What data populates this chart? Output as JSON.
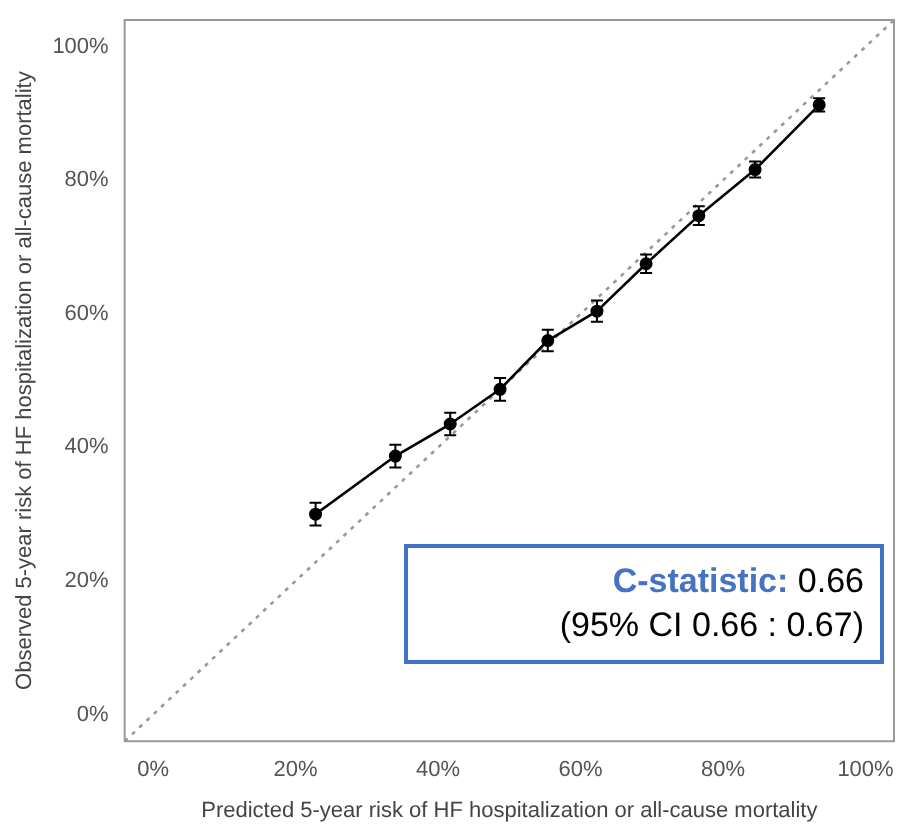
{
  "chart_data": {
    "type": "line",
    "xlabel": "Predicted 5-year risk of HF hospitalization or all-cause mortality",
    "ylabel": "Observed 5-year risk of HF hospitalization or all-cause mortality",
    "xlim": [
      -4,
      104
    ],
    "ylim": [
      -4,
      104
    ],
    "xticks": [
      {
        "value": 0,
        "label": "0%"
      },
      {
        "value": 20,
        "label": "20%"
      },
      {
        "value": 40,
        "label": "40%"
      },
      {
        "value": 60,
        "label": "60%"
      },
      {
        "value": 80,
        "label": "80%"
      },
      {
        "value": 100,
        "label": "100%"
      }
    ],
    "yticks": [
      {
        "value": 0,
        "label": "0%"
      },
      {
        "value": 20,
        "label": "20%"
      },
      {
        "value": 40,
        "label": "40%"
      },
      {
        "value": 60,
        "label": "60%"
      },
      {
        "value": 80,
        "label": "80%"
      },
      {
        "value": 100,
        "label": "100%"
      }
    ],
    "grid": false,
    "legend": false,
    "series": [
      {
        "color": "#000000",
        "marker": "circle",
        "line_style": "solid",
        "x": [
          22.8,
          34.0,
          41.7,
          48.7,
          55.4,
          62.3,
          69.2,
          76.6,
          84.5,
          93.5
        ],
        "values": [
          30.0,
          38.7,
          43.5,
          48.7,
          56.0,
          60.4,
          67.5,
          74.7,
          81.6,
          91.3
        ],
        "errors": [
          1.7,
          1.7,
          1.7,
          1.7,
          1.6,
          1.6,
          1.4,
          1.4,
          1.2,
          1.0
        ]
      },
      {
        "color": "#999999",
        "marker": "none",
        "line_style": "dotted",
        "x": [
          -4,
          104
        ],
        "values": [
          -4,
          104
        ]
      }
    ],
    "annotations": [
      "C-statistic:",
      "0.66",
      "(95% CI 0.66 : 0.67)"
    ]
  }
}
